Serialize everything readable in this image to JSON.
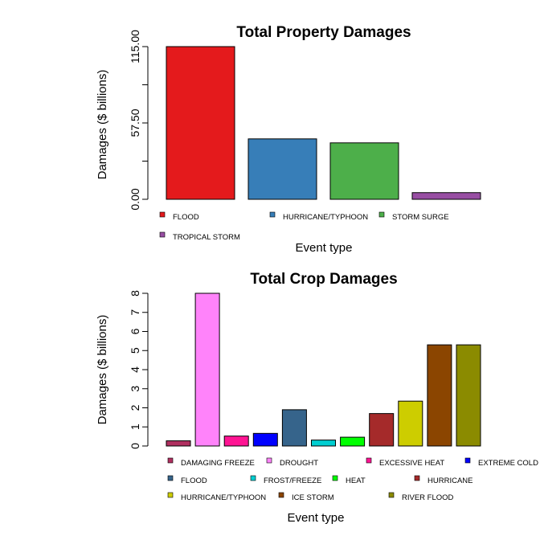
{
  "chart_data": [
    {
      "type": "bar",
      "title": "Total Property Damages",
      "xlabel": "Event type",
      "ylabel": "Damages ($ billions)",
      "ylim": [
        0,
        115
      ],
      "yticks": [
        "0.00",
        "57.50",
        "115.00"
      ],
      "categories": [
        "FLOOD",
        "HURRICANE/TYPHOON",
        "STORM SURGE",
        "TROPICAL STORM"
      ],
      "values": [
        115.0,
        45.5,
        42.5,
        5.0
      ],
      "colors": [
        "#E41A1C",
        "#377EB8",
        "#4DAF4A",
        "#984EA3"
      ],
      "legend_position": "bottom"
    },
    {
      "type": "bar",
      "title": "Total Crop Damages",
      "xlabel": "Event type",
      "ylabel": "Damages ($ billions)",
      "ylim": [
        0,
        8
      ],
      "yticks": [
        "0",
        "1",
        "2",
        "3",
        "4",
        "5",
        "6",
        "7",
        "8"
      ],
      "categories": [
        "DAMAGING FREEZE",
        "DROUGHT",
        "EXCESSIVE HEAT",
        "EXTREME COLD",
        "FLOOD",
        "FROST/FREEZE",
        "HEAT",
        "HURRICANE",
        "HURRICANE/TYPHOON",
        "ICE STORM",
        "RIVER FLOOD"
      ],
      "values": [
        0.27,
        8.0,
        0.52,
        0.66,
        1.9,
        0.31,
        0.46,
        1.7,
        2.35,
        5.3,
        5.3
      ],
      "colors": [
        "#B03060",
        "#FF83FA",
        "#FF1493",
        "#0000FF",
        "#36648B",
        "#00CED1",
        "#00FF00",
        "#A52A2A",
        "#CDCD00",
        "#8B4500",
        "#8B8B00"
      ],
      "legend_position": "bottom"
    }
  ]
}
